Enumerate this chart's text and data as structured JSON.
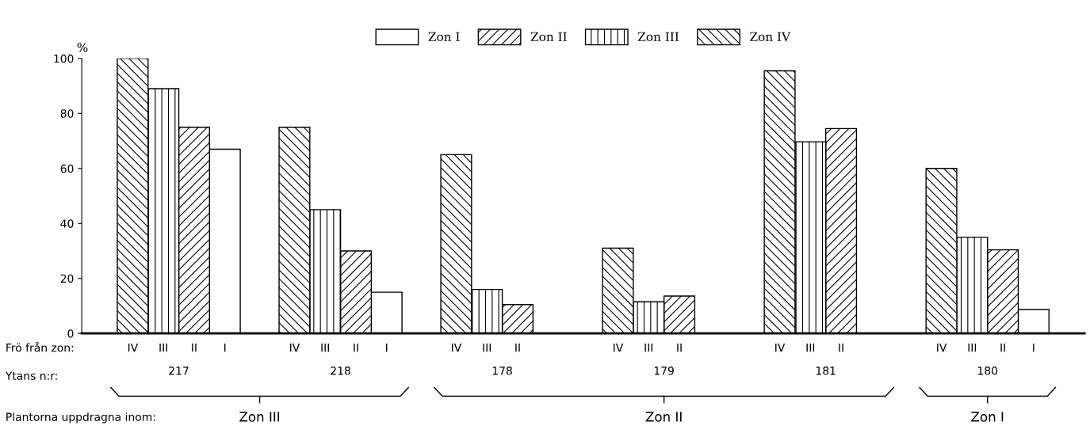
{
  "chart_data": {
    "type": "bar",
    "ylabel": "%",
    "categories": [
      "217",
      "218",
      "178",
      "179",
      "181",
      "180"
    ],
    "series": [
      {
        "name": "Zon I",
        "color": "#ffffff",
        "values": [
          67,
          15,
          null,
          null,
          null,
          8.7
        ]
      },
      {
        "name": "Zon II",
        "color": "#000000",
        "values": [
          75,
          30,
          10.5,
          13.6,
          74.5,
          30.4
        ]
      },
      {
        "name": "Zon III",
        "color": "#000000",
        "values": [
          89,
          45,
          16,
          11.5,
          69.7,
          35
        ]
      },
      {
        "name": "Zon IV",
        "color": "#000000",
        "values": [
          100,
          75,
          65,
          31,
          95.5,
          60
        ]
      }
    ],
    "ylim": [
      0,
      100
    ],
    "yticks": [
      0,
      20,
      40,
      60,
      80,
      100
    ],
    "grid": false,
    "legend": "top",
    "annotations": [
      "Frö från zon:",
      "Ytans n:r:",
      "Plantorna uppdragna inom:",
      "Zon III",
      "Zon II",
      "Zon I",
      "IV",
      "III",
      "II",
      "I",
      "IV",
      "III",
      "II",
      "I",
      "IV",
      "III",
      "II",
      "IV",
      "III",
      "II",
      "IV",
      "III",
      "II",
      "IV",
      "III",
      "II",
      "I"
    ]
  }
}
